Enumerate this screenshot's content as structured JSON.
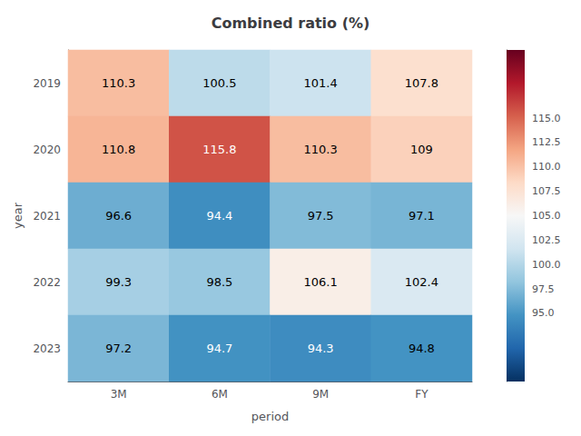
{
  "chart_data": {
    "type": "heatmap",
    "title": "Combined ratio (%)",
    "xlabel": "period",
    "ylabel": "year",
    "categories": [
      "3M",
      "6M",
      "9M",
      "FY"
    ],
    "y_categories": [
      "2019",
      "2020",
      "2021",
      "2022",
      "2023"
    ],
    "values": [
      [
        110.3,
        100.5,
        101.4,
        107.8
      ],
      [
        110.8,
        115.8,
        110.3,
        109.0
      ],
      [
        96.6,
        94.4,
        97.5,
        97.1
      ],
      [
        99.3,
        98.5,
        106.1,
        102.4
      ],
      [
        97.2,
        94.7,
        94.3,
        94.8
      ]
    ],
    "data_labels": true,
    "grid": false,
    "color_range": [
      88.0,
      122.0
    ],
    "color_ticks": [
      {
        "value": 95.0,
        "label": "95.0"
      },
      {
        "value": 97.5,
        "label": "97.5"
      },
      {
        "value": 100.0,
        "label": "100.0"
      },
      {
        "value": 102.5,
        "label": "102.5"
      },
      {
        "value": 105.0,
        "label": "105.0"
      },
      {
        "value": 107.5,
        "label": "107.5"
      },
      {
        "value": 110.0,
        "label": "110.0"
      },
      {
        "value": 112.5,
        "label": "112.5"
      },
      {
        "value": 115.0,
        "label": "115.0"
      }
    ]
  }
}
